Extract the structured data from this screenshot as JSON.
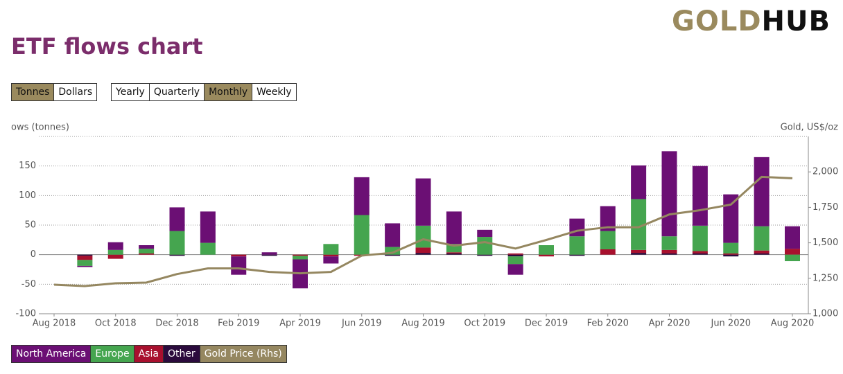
{
  "header": {
    "logo_gold": "GOLD",
    "logo_hub": "HUB",
    "title": "ETF flows chart"
  },
  "controls": {
    "units": [
      {
        "label": "Tonnes",
        "selected": true
      },
      {
        "label": "Dollars",
        "selected": false
      }
    ],
    "periods": [
      {
        "label": "Yearly",
        "selected": false
      },
      {
        "label": "Quarterly",
        "selected": false
      },
      {
        "label": "Monthly",
        "selected": true
      },
      {
        "label": "Weekly",
        "selected": false
      }
    ]
  },
  "chart_data": {
    "type": "bar",
    "stacked": true,
    "y_label": "ows (tonnes)",
    "y2_label": "Gold, US$/oz",
    "categories": [
      "Aug 2018",
      null,
      "Oct 2018",
      null,
      "Dec 2018",
      null,
      "Feb 2019",
      null,
      "Apr 2019",
      null,
      "Jun 2019",
      null,
      "Aug 2019",
      null,
      "Oct 2019",
      null,
      "Dec 2019",
      null,
      "Feb 2020",
      null,
      "Apr 2020",
      null,
      "Jun 2020",
      null,
      "Aug 2020"
    ],
    "ylim": [
      -100,
      200
    ],
    "yticks": [
      -100,
      -50,
      0,
      50,
      100,
      150
    ],
    "y2lim": [
      1000,
      2250
    ],
    "y2ticks": [
      {
        "value": 1000,
        "label": "1,000"
      },
      {
        "value": 1250,
        "label": "1,250"
      },
      {
        "value": 1500,
        "label": "1,500"
      },
      {
        "value": 1750,
        "label": "1,750"
      },
      {
        "value": 2000,
        "label": "2,000"
      }
    ],
    "grid": true,
    "series": [
      {
        "name": "North America",
        "color": "#6b0f74",
        "values": [
          null,
          -2,
          13,
          6,
          40,
          53,
          -31,
          4,
          -49,
          -12,
          64,
          40,
          80,
          55,
          12,
          -18,
          0,
          30,
          42,
          57,
          144,
          101,
          82,
          117,
          38
        ]
      },
      {
        "name": "Europe",
        "color": "#45a54f",
        "values": [
          null,
          -10,
          8,
          8,
          40,
          20,
          0,
          0,
          -6,
          18,
          67,
          13,
          37,
          14,
          30,
          -13,
          16,
          31,
          31,
          86,
          23,
          43,
          18,
          41,
          -11
        ]
      },
      {
        "name": "Asia",
        "color": "#a8102e",
        "values": [
          null,
          -7,
          -7,
          2,
          0,
          0,
          -3,
          0,
          -2,
          -3,
          -2,
          0,
          9,
          2,
          0,
          2,
          -3,
          0,
          9,
          5,
          6,
          4,
          2,
          5,
          10
        ]
      },
      {
        "name": "Other",
        "color": "#2b0b3d",
        "values": [
          null,
          -2,
          0,
          0,
          -2,
          0,
          0,
          -2,
          0,
          0,
          0,
          -2,
          3,
          2,
          -2,
          -3,
          0,
          -2,
          0,
          3,
          2,
          2,
          -3,
          2,
          0
        ]
      },
      {
        "name": "Gold Price (Rhs)",
        "color": "#958760",
        "type": "line",
        "axis": "y2",
        "values": [
          1205,
          1195,
          1215,
          1220,
          1280,
          1320,
          1320,
          1295,
          1285,
          1295,
          1410,
          1430,
          1525,
          1480,
          1505,
          1460,
          1520,
          1585,
          1610,
          1610,
          1700,
          1730,
          1770,
          1965,
          1955
        ]
      }
    ]
  }
}
